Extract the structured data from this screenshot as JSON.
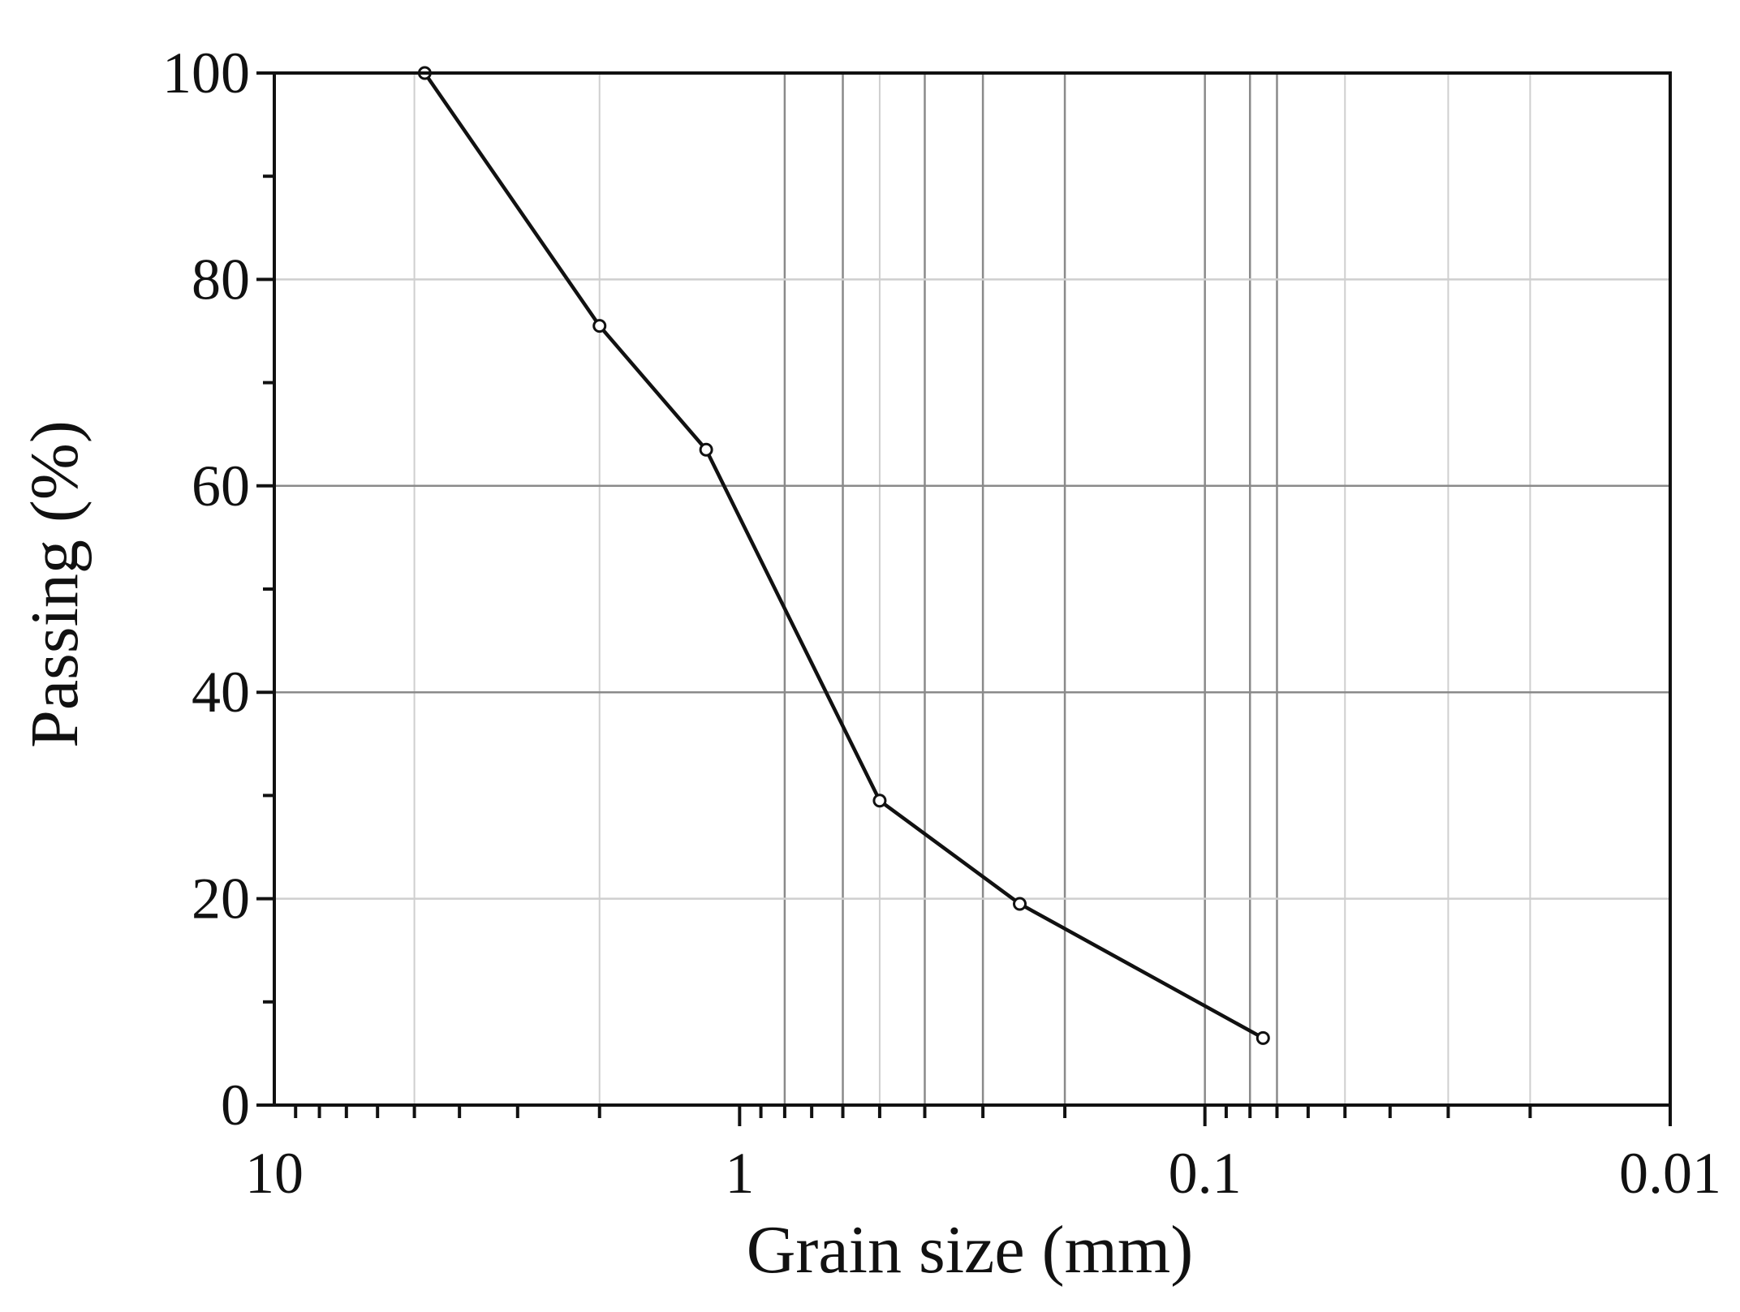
{
  "chart_data": {
    "type": "line",
    "title": "",
    "xlabel": "Grain size (mm)",
    "ylabel": "Passing (%)",
    "x_scale": "log",
    "x_reversed": true,
    "xlim": [
      10,
      0.01
    ],
    "ylim": [
      0,
      100
    ],
    "x_tick_labels": [
      "10",
      "1",
      "0.1",
      "0.01"
    ],
    "y_tick_labels": [
      "0",
      "20",
      "40",
      "60",
      "80",
      "100"
    ],
    "grid": true,
    "legend": "none",
    "line_color": "#111111",
    "series": [
      {
        "x": [
          4.75,
          2.0,
          1.18,
          0.5,
          0.25,
          0.075
        ],
        "y": [
          100,
          75.5,
          63.5,
          29.5,
          19.5,
          6.5
        ]
      }
    ]
  }
}
